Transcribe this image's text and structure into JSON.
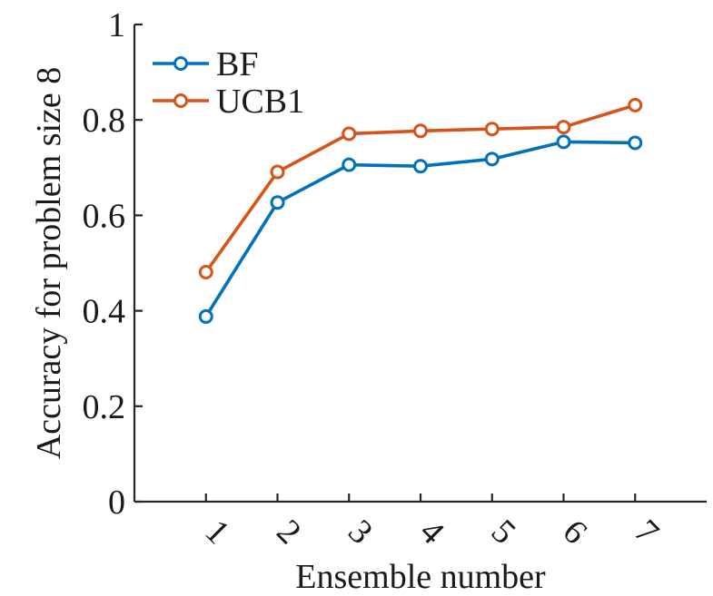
{
  "chart_data": {
    "type": "line",
    "title": "",
    "xlabel": "Ensemble number",
    "ylabel": "Accuracy for problem size 8",
    "x": [
      1,
      2,
      3,
      4,
      5,
      6,
      7
    ],
    "x_tick_labels": [
      "1",
      "2",
      "3",
      "4",
      "5",
      "6",
      "7"
    ],
    "xlim": [
      0,
      8
    ],
    "ylim": [
      0,
      1
    ],
    "y_ticks": [
      0,
      0.2,
      0.4,
      0.6,
      0.8,
      1
    ],
    "y_tick_labels": [
      "0",
      "0.2",
      "0.4",
      "0.6",
      "0.8",
      "1"
    ],
    "grid": false,
    "legend_position": "top-left",
    "series": [
      {
        "name": "BF",
        "color": "#0072BD",
        "values": [
          0.388,
          0.627,
          0.706,
          0.703,
          0.718,
          0.754,
          0.752
        ]
      },
      {
        "name": "UCB1",
        "color": "#D95319",
        "values": [
          0.481,
          0.691,
          0.771,
          0.777,
          0.781,
          0.785,
          0.831
        ]
      }
    ]
  }
}
